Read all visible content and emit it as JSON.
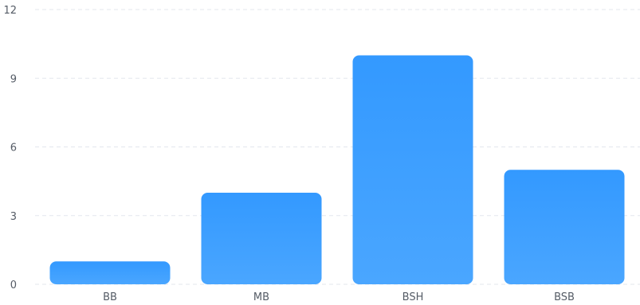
{
  "chart_data": {
    "type": "bar",
    "categories": [
      "BB",
      "MB",
      "BSH",
      "BSB"
    ],
    "values": [
      1,
      4,
      10,
      5
    ],
    "yticks": [
      "0",
      "3",
      "6",
      "9",
      "12"
    ],
    "ylim": [
      0,
      12
    ],
    "grid": true,
    "bar_color_top": "#3399ff",
    "bar_color_bottom": "#4aa6ff",
    "title": "",
    "xlabel": "",
    "ylabel": ""
  }
}
